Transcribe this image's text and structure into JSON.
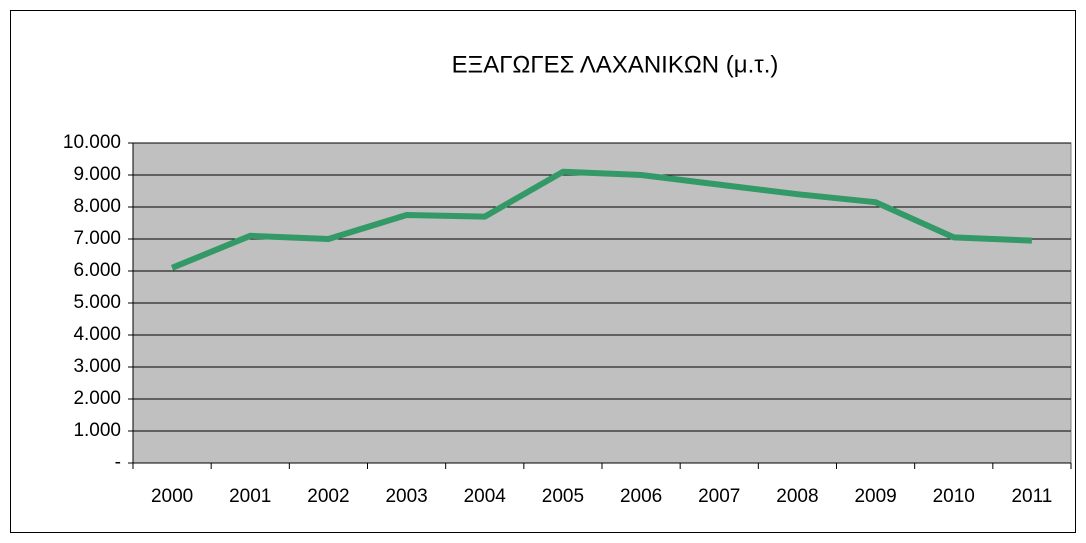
{
  "chart_data": {
    "type": "line",
    "title": "ΕΞΑΓΩΓΕΣ ΛΑΧΑΝΙΚΩΝ (μ.τ.)",
    "categories": [
      "2000",
      "2001",
      "2002",
      "2003",
      "2004",
      "2005",
      "2006",
      "2007",
      "2008",
      "2009",
      "2010",
      "2011"
    ],
    "series": [
      {
        "name": "ΕΞΑΓΩΓΕΣ ΛΑΧΑΝΙΚΩΝ",
        "color": "#339966",
        "values": [
          6100,
          7100,
          7000,
          7750,
          7700,
          9100,
          9000,
          8700,
          8400,
          8150,
          7050,
          6950
        ]
      }
    ],
    "ylim": [
      0,
      10000
    ],
    "yticks": [
      {
        "value": 0,
        "label": "-"
      },
      {
        "value": 1000,
        "label": "1.000"
      },
      {
        "value": 2000,
        "label": "2.000"
      },
      {
        "value": 3000,
        "label": "3.000"
      },
      {
        "value": 4000,
        "label": "4.000"
      },
      {
        "value": 5000,
        "label": "5.000"
      },
      {
        "value": 6000,
        "label": "6.000"
      },
      {
        "value": 7000,
        "label": "7.000"
      },
      {
        "value": 8000,
        "label": "8.000"
      },
      {
        "value": 9000,
        "label": "9.000"
      },
      {
        "value": 10000,
        "label": "10.000"
      }
    ],
    "grid": true
  }
}
